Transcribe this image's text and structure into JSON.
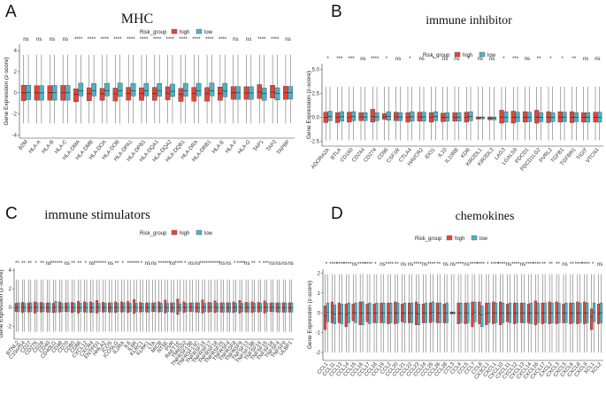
{
  "colors": {
    "high": "#e0453a",
    "low": "#4bb3c8",
    "whisker": "#555555",
    "median": "#222222"
  },
  "chart_data": [
    {
      "panel_label": "A",
      "type": "boxplot",
      "title": "MHC",
      "legend_title": "Risk_group",
      "legend_entries": [
        "high",
        "low"
      ],
      "ylabel": "Gene Expression (z-score)",
      "ylim": [
        -4.3,
        4.6
      ],
      "yticks": [
        "-4",
        "-2",
        "0",
        "2",
        "4"
      ],
      "ytick_values": [
        -4,
        -2,
        0,
        2,
        4
      ],
      "categories": [
        "B2M",
        "HLA-A",
        "HLA-B",
        "HLA-C",
        "HLA-DMA",
        "HLA-DMB",
        "HLA-DOA",
        "HLA-DOB",
        "HLA-DPA1",
        "HLA-DPB1",
        "HLA-DQA1",
        "HLA-DQA2",
        "HLA-DQB1",
        "HLA-DRA",
        "HLA-DRB1",
        "HLA-E",
        "HLA-F",
        "HLA-G",
        "TAP1",
        "TAP2",
        "TAPBP"
      ],
      "significance": [
        "ns",
        "ns",
        "ns",
        "ns",
        "****",
        "****",
        "****",
        "****",
        "****",
        "****",
        "****",
        "****",
        "****",
        "****",
        "****",
        "****",
        "ns",
        "ns",
        "****",
        "****",
        "ns"
      ],
      "box_high": {
        "q1": [
          -0.75,
          -0.7,
          -0.7,
          -0.72,
          -0.85,
          -0.75,
          -0.72,
          -0.78,
          -0.7,
          -0.72,
          -0.72,
          -0.68,
          -0.82,
          -0.8,
          -0.8,
          -0.72,
          -0.62,
          -0.62,
          -0.55,
          -0.5,
          -0.62
        ],
        "q3": [
          0.72,
          0.68,
          0.68,
          0.7,
          0.38,
          0.48,
          0.42,
          0.45,
          0.52,
          0.48,
          0.52,
          0.58,
          0.42,
          0.52,
          0.5,
          0.55,
          0.6,
          0.58,
          0.78,
          0.72,
          0.62
        ]
      },
      "box_low": {
        "q1": [
          -0.65,
          -0.7,
          -0.7,
          -0.7,
          -0.3,
          -0.3,
          -0.3,
          -0.35,
          -0.3,
          -0.3,
          -0.32,
          -0.35,
          -0.32,
          -0.3,
          -0.3,
          -0.38,
          -0.62,
          -0.62,
          -0.72,
          -0.68,
          -0.6
        ],
        "q3": [
          0.72,
          0.68,
          0.7,
          0.7,
          0.92,
          0.88,
          0.9,
          0.92,
          0.88,
          0.88,
          0.88,
          0.82,
          0.9,
          0.9,
          0.92,
          0.9,
          0.6,
          0.58,
          0.45,
          0.48,
          0.6
        ]
      },
      "whisker_low": -2.9,
      "whisker_high": 3.6
    },
    {
      "panel_label": "B",
      "type": "boxplot",
      "title": "immune inhibitor",
      "legend_title": "Risk_group",
      "legend_entries": [
        "high",
        "low"
      ],
      "ylabel": "Gene Expression (z-score)",
      "ylim": [
        -3.0,
        5.6
      ],
      "yticks": [
        "-2.5",
        "0.0",
        "2.5",
        "5.0"
      ],
      "ytick_values": [
        -2.5,
        0,
        2.5,
        5
      ],
      "categories": [
        "ADORA2A",
        "BTLA",
        "CD160",
        "CD244",
        "CD274",
        "CD96",
        "CSF1R",
        "CTLA4",
        "HAVCR2",
        "IDO1",
        "IL10",
        "IL10RB",
        "KDR",
        "KIR2DL1",
        "KIR2DL3",
        "LAG3",
        "LGALS9",
        "PDCD1",
        "PDCD1LG2",
        "PVRL2",
        "TGFB1",
        "TGFBR1",
        "TIGIT",
        "VTCN1"
      ],
      "significance": [
        "*",
        "***",
        "***",
        "ns",
        "****",
        "*",
        "ns",
        "*",
        "ns",
        "*",
        "ns",
        "ns",
        "*",
        "ns",
        "ns",
        "*",
        "***",
        "ns",
        "**",
        "*",
        "*",
        "**",
        "ns",
        "ns"
      ],
      "box_high": {
        "q1": [
          -0.55,
          -0.55,
          -0.5,
          -0.35,
          -0.5,
          -0.2,
          -0.35,
          -0.5,
          -0.4,
          -0.5,
          -0.45,
          -0.4,
          -0.5,
          -0.18,
          -0.25,
          -0.6,
          -0.6,
          -0.5,
          -0.6,
          -0.55,
          -0.5,
          -0.55,
          -0.5,
          -0.5
        ],
        "q3": [
          0.55,
          0.5,
          0.55,
          0.5,
          0.85,
          0.4,
          0.55,
          0.5,
          0.55,
          0.5,
          0.45,
          0.5,
          0.55,
          0.05,
          0.05,
          0.75,
          0.65,
          0.6,
          0.75,
          0.6,
          0.6,
          0.6,
          0.5,
          0.55
        ]
      },
      "box_low": {
        "q1": [
          -0.35,
          -0.4,
          -0.35,
          -0.35,
          -0.35,
          -0.3,
          -0.35,
          -0.4,
          -0.4,
          -0.35,
          -0.4,
          -0.4,
          -0.35,
          -0.15,
          -0.25,
          -0.5,
          -0.45,
          -0.45,
          -0.45,
          -0.45,
          -0.45,
          -0.45,
          -0.5,
          -0.5
        ],
        "q3": [
          0.65,
          0.6,
          0.6,
          0.5,
          0.5,
          0.6,
          0.5,
          0.6,
          0.55,
          0.6,
          0.5,
          0.5,
          0.6,
          0.05,
          0.05,
          0.6,
          0.55,
          0.55,
          0.5,
          0.5,
          0.55,
          0.5,
          0.5,
          0.55
        ]
      },
      "whisker_low": -2.4,
      "whisker_high": 3.2
    },
    {
      "panel_label": "C",
      "type": "boxplot",
      "title": "immune stimulators",
      "legend_title": "Risk_group",
      "legend_entries": [
        "high",
        "low"
      ],
      "ylabel": "Gene Expression (z-score)",
      "ylim": [
        -3.4,
        4.2
      ],
      "yticks": [
        "-2",
        "0",
        "2",
        "4"
      ],
      "ytick_values": [
        -2,
        0,
        2,
        4
      ],
      "categories": [
        "BTNL2",
        "C10orf54",
        "CD27",
        "CD276",
        "CD28",
        "CD40",
        "CD40LG",
        "CD48",
        "CD70",
        "CD80",
        "CD86",
        "CXCL12",
        "CXCR4",
        "ENTPD1",
        "HHLA2",
        "ICOS",
        "ICOSLG",
        "IL2RA",
        "IL6",
        "IL6R",
        "KLRC1",
        "KLRK1",
        "LTA",
        "MICB",
        "NT5E",
        "PVR",
        "RAET1E",
        "TMIGD2",
        "TNFRSF13B",
        "TNFRSF13C",
        "TNFRSF14",
        "TNFRSF17",
        "TNFRSF18",
        "TNFRSF25",
        "TNFRSF4",
        "TNFRSF8",
        "TNFRSF9",
        "TNFSF13",
        "TNFSF13B",
        "TNFSF14",
        "TNFSF15",
        "TNFSF18",
        "TNFSF4",
        "TNFSF9",
        "ULBP1"
      ],
      "significance": [
        "**",
        "**",
        "**",
        "*",
        "**",
        "ns",
        "****",
        "**",
        "ns",
        "**",
        "**",
        "*",
        "ns",
        "****",
        "**",
        "ns",
        "**",
        "*",
        "**",
        "****",
        "*",
        "ns",
        "ns",
        "**",
        "****",
        "ns",
        "****",
        "*",
        "ns",
        "ns",
        "****",
        "**",
        "****",
        "ns",
        "ns",
        "*",
        "****",
        "ns",
        "**",
        "*",
        "***",
        "ns",
        "ns",
        "ns",
        "ns"
      ],
      "box_high": {
        "q1": [
          -0.45,
          -0.55,
          -0.5,
          -0.6,
          -0.5,
          -0.5,
          -0.55,
          -0.5,
          -0.45,
          -0.55,
          -0.6,
          -0.5,
          -0.55,
          -0.6,
          -0.5,
          -0.5,
          -0.55,
          -0.5,
          -0.55,
          -0.65,
          -0.5,
          -0.5,
          -0.45,
          -0.5,
          -0.6,
          -0.5,
          -0.75,
          -0.55,
          -0.45,
          -0.5,
          -0.6,
          -0.5,
          -0.55,
          -0.5,
          -0.5,
          -0.55,
          -0.6,
          -0.5,
          -0.55,
          -0.5,
          -0.6,
          -0.45,
          -0.5,
          -0.5,
          -0.5
        ],
        "q3": [
          0.45,
          0.55,
          0.5,
          0.6,
          0.55,
          0.5,
          0.45,
          0.6,
          0.5,
          0.55,
          0.65,
          0.6,
          0.6,
          0.75,
          0.55,
          0.5,
          0.6,
          0.6,
          0.65,
          0.85,
          0.55,
          0.5,
          0.5,
          0.6,
          0.8,
          0.5,
          0.9,
          0.6,
          0.5,
          0.5,
          0.8,
          0.55,
          0.7,
          0.5,
          0.5,
          0.6,
          0.75,
          0.55,
          0.6,
          0.55,
          0.7,
          0.5,
          0.5,
          0.5,
          0.5
        ]
      },
      "box_low": {
        "q1": [
          -0.45,
          -0.45,
          -0.45,
          -0.45,
          -0.45,
          -0.5,
          -0.5,
          -0.45,
          -0.45,
          -0.45,
          -0.45,
          -0.5,
          -0.5,
          -0.45,
          -0.45,
          -0.5,
          -0.45,
          -0.45,
          -0.45,
          -0.45,
          -0.45,
          -0.5,
          -0.45,
          -0.45,
          -0.45,
          -0.5,
          -0.4,
          -0.45,
          -0.45,
          -0.5,
          -0.45,
          -0.45,
          -0.45,
          -0.5,
          -0.5,
          -0.45,
          -0.45,
          -0.5,
          -0.45,
          -0.45,
          -0.45,
          -0.45,
          -0.5,
          -0.5,
          -0.5
        ],
        "q3": [
          0.5,
          0.45,
          0.5,
          0.5,
          0.45,
          0.5,
          0.65,
          0.45,
          0.5,
          0.45,
          0.45,
          0.5,
          0.5,
          0.45,
          0.45,
          0.5,
          0.45,
          0.5,
          0.45,
          0.45,
          0.45,
          0.5,
          0.5,
          0.45,
          0.45,
          0.5,
          0.4,
          0.45,
          0.5,
          0.5,
          0.45,
          0.5,
          0.45,
          0.5,
          0.5,
          0.45,
          0.45,
          0.5,
          0.45,
          0.45,
          0.45,
          0.5,
          0.5,
          0.5,
          0.5
        ]
      },
      "whisker_low": -2.6,
      "whisker_high": 3.0
    },
    {
      "panel_label": "D",
      "type": "boxplot",
      "title": "chemokines",
      "legend_title": "Risk_group",
      "legend_entries": [
        "high",
        "low"
      ],
      "ylabel": "Gene Expression (z-score)",
      "ylim": [
        -2.4,
        2.2
      ],
      "yticks": [
        "-2",
        "-1",
        "0",
        "1",
        "2"
      ],
      "ytick_values": [
        -2,
        -1,
        0,
        1,
        2
      ],
      "categories": [
        "CCL1",
        "CCL11",
        "CCL13",
        "CCL14",
        "CCL15",
        "CCL16",
        "CCL17",
        "CCL18",
        "CCL19",
        "CCL2",
        "CCL20",
        "CCL21",
        "CCL22",
        "CCL23",
        "CCL24",
        "CCL25",
        "CCL26",
        "CCL28",
        "CCL3",
        "CCL4",
        "CCL5",
        "CCL7",
        "CCL8",
        "CX3CL1",
        "CXCL1",
        "CXCL10",
        "CXCL11",
        "CXCL12",
        "CXCL13",
        "CXCL14",
        "CXCL16",
        "CXCL17",
        "CXCL2",
        "CXCL3",
        "CXCL5",
        "CXCL6",
        "CXCL8",
        "CXCL9",
        "XCL1",
        "XCL2"
      ],
      "significance": [
        "*",
        "****",
        "****",
        "****",
        "ns",
        "****",
        "****",
        "*",
        "ns",
        "****",
        "**",
        "ns",
        "ns",
        "****",
        "ns",
        "****",
        "**",
        "ns",
        "ns",
        "****",
        "ns",
        "****",
        "****",
        "*",
        "****",
        "****",
        "ns",
        "****",
        "ns",
        "****",
        "****",
        "**",
        "**",
        "**",
        "ns",
        "**",
        "****",
        "****",
        "*",
        "ns"
      ],
      "box_high": {
        "q1": [
          -0.85,
          -0.5,
          -0.5,
          -0.7,
          -0.4,
          -0.6,
          -0.45,
          -0.5,
          -0.5,
          -0.55,
          -0.55,
          -0.45,
          -0.5,
          -0.6,
          -0.5,
          -0.5,
          -0.5,
          -0.5,
          -0.05,
          -0.55,
          -0.55,
          -0.7,
          -0.55,
          -0.6,
          -0.55,
          -0.6,
          -0.45,
          -0.55,
          -0.5,
          -0.5,
          -0.6,
          -0.55,
          -0.55,
          -0.55,
          -0.5,
          -0.55,
          -0.55,
          -0.55,
          -0.85,
          -0.55
        ],
        "q3": [
          0.35,
          0.55,
          0.5,
          0.45,
          0.45,
          0.55,
          0.45,
          0.45,
          0.5,
          0.5,
          0.55,
          0.45,
          0.5,
          0.55,
          0.45,
          0.5,
          0.5,
          0.45,
          0.05,
          0.5,
          0.5,
          0.55,
          0.55,
          0.5,
          0.55,
          0.55,
          0.45,
          0.5,
          0.5,
          0.45,
          0.6,
          0.5,
          0.55,
          0.55,
          0.45,
          0.5,
          0.55,
          0.55,
          0.2,
          0.45
        ]
      },
      "box_low": {
        "q1": [
          -0.45,
          -0.55,
          -0.55,
          -0.5,
          -0.5,
          -0.6,
          -0.55,
          -0.5,
          -0.5,
          -0.5,
          -0.5,
          -0.5,
          -0.5,
          -0.6,
          -0.5,
          -0.45,
          -0.5,
          -0.5,
          -0.05,
          -0.5,
          -0.5,
          -0.45,
          -0.7,
          -0.5,
          -0.5,
          -0.5,
          -0.5,
          -0.5,
          -0.5,
          -0.55,
          -0.5,
          -0.5,
          -0.5,
          -0.5,
          -0.5,
          -0.5,
          -0.5,
          -0.5,
          -0.45,
          -0.5
        ],
        "q3": [
          0.5,
          0.4,
          0.45,
          0.5,
          0.5,
          0.55,
          0.5,
          0.5,
          0.5,
          0.5,
          0.5,
          0.5,
          0.5,
          0.45,
          0.5,
          0.55,
          0.5,
          0.5,
          0.05,
          0.5,
          0.5,
          0.55,
          0.35,
          0.5,
          0.5,
          0.5,
          0.5,
          0.5,
          0.5,
          0.5,
          0.5,
          0.5,
          0.5,
          0.5,
          0.5,
          0.5,
          0.5,
          0.5,
          0.5,
          0.5
        ]
      },
      "whisker_low": -2.0,
      "whisker_high": 1.95
    }
  ]
}
